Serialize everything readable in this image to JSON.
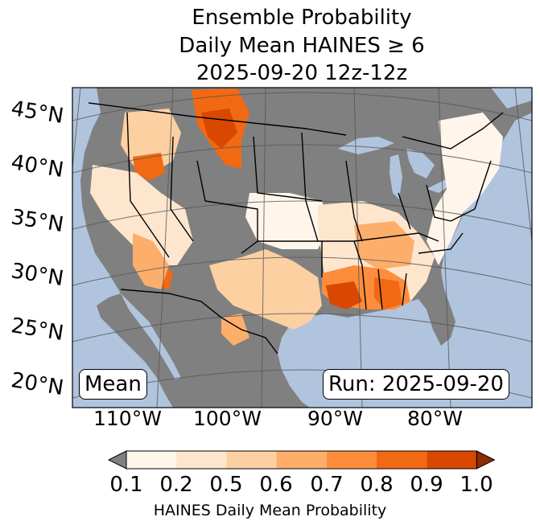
{
  "title": {
    "line1": "Ensemble Probability",
    "line2": "Daily Mean HAINES ≥ 6",
    "line3": "2025-09-20 12z-12z"
  },
  "map": {
    "lat_labels": [
      "45°N",
      "40°N",
      "35°N",
      "30°N",
      "25°N",
      "20°N"
    ],
    "lon_labels": [
      "110°W",
      "100°W",
      "90°W",
      "80°W"
    ],
    "stat_label": "Mean",
    "run_label": "Run: 2025-09-20",
    "colors": {
      "ocean": "#b0c4de",
      "land": "#808080",
      "grid": "#555555",
      "border": "#000000"
    }
  },
  "colorbar": {
    "ticks": [
      "0.1",
      "0.2",
      "0.5",
      "0.6",
      "0.7",
      "0.8",
      "0.9",
      "1.0"
    ],
    "colors": [
      "#fff5eb",
      "#fee6ce",
      "#fdd0a2",
      "#fdae6b",
      "#fd8d3c",
      "#f16913",
      "#d94801"
    ],
    "under_color": "#808080",
    "over_color": "#8c2d04",
    "label": "HAINES Daily Mean Probability"
  }
}
